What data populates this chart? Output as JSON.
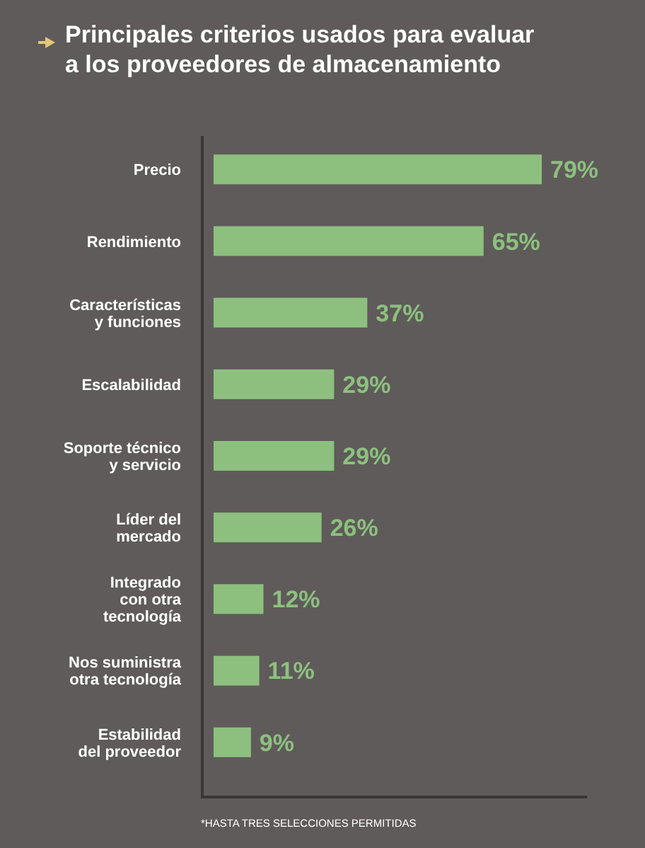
{
  "chart_data": {
    "type": "bar",
    "orientation": "horizontal",
    "title": "Principales criterios usados para evaluar\na los proveedores de almacenamiento",
    "categories": [
      "Precio",
      "Rendimiento",
      "Características\ny funciones",
      "Escalabilidad",
      "Soporte técnico\ny servicio",
      "Líder del\nmercado",
      "Integrado\ncon otra\ntecnología",
      "Nos suministra\notra tecnología",
      "Estabilidad\ndel proveedor"
    ],
    "values": [
      79,
      65,
      37,
      29,
      29,
      26,
      12,
      11,
      9
    ],
    "value_labels": [
      "79%",
      "65%",
      "37%",
      "29%",
      "29%",
      "26%",
      "12%",
      "11%",
      "9%"
    ],
    "color": "#8dc07f",
    "annotations": [
      "*HASTA TRES SELECCIONES PERMITIDAS"
    ]
  }
}
